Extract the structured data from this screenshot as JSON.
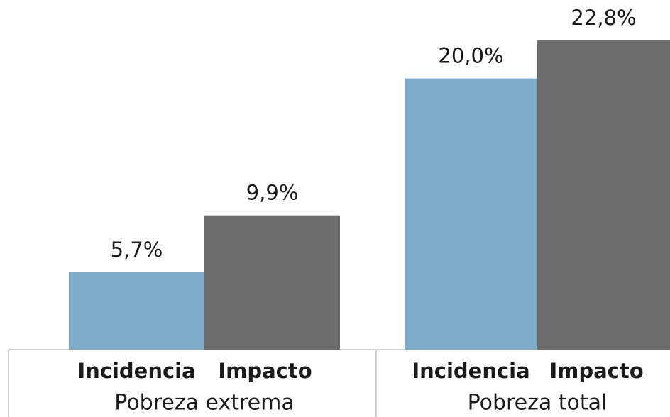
{
  "chart_data": {
    "type": "bar",
    "categories": [
      "Pobreza extrema",
      "Pobreza total"
    ],
    "series": [
      {
        "name": "Incidencia",
        "color": "#7fabc9",
        "values": [
          5.7,
          20.0
        ],
        "value_labels": [
          "5,7%",
          "20,0%"
        ]
      },
      {
        "name": "Impacto",
        "color": "#6c6c6c",
        "values": [
          9.9,
          22.8
        ],
        "value_labels": [
          "9,9%",
          "22,8%"
        ]
      }
    ]
  }
}
